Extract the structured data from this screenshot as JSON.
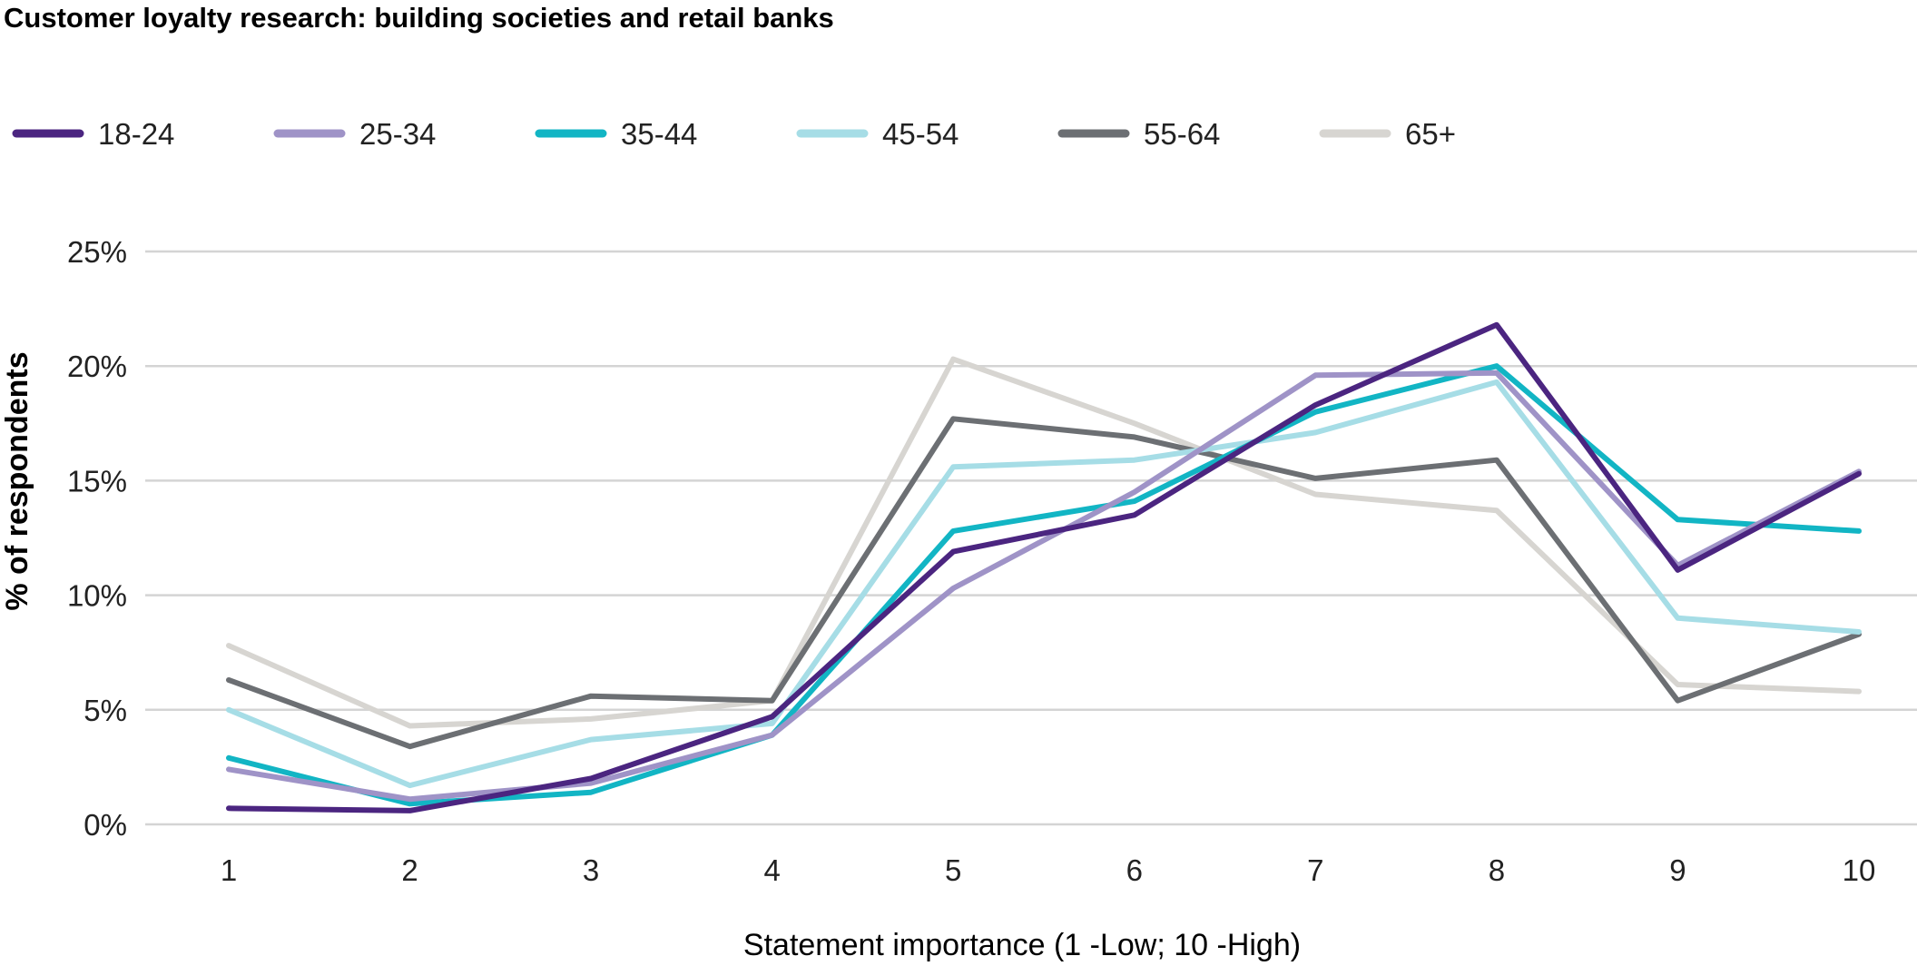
{
  "chart_data": {
    "type": "line",
    "title": "Customer loyalty research: building societies and retail banks",
    "xlabel": "Statement importance (1 -Low; 10 -High)",
    "ylabel": "% of respondents",
    "x": [
      1,
      2,
      3,
      4,
      5,
      6,
      7,
      8,
      9,
      10
    ],
    "yticks": [
      "0%",
      "5%",
      "10%",
      "15%",
      "20%",
      "25%"
    ],
    "ylim": [
      0,
      25
    ],
    "grid": true,
    "legend_position": "top-left",
    "series": [
      {
        "name": "18-24",
        "color": "#4b2580",
        "values": [
          0.7,
          0.6,
          2.0,
          4.7,
          11.9,
          13.5,
          18.3,
          21.8,
          11.1,
          15.3
        ]
      },
      {
        "name": "25-34",
        "color": "#9f93c7",
        "values": [
          2.4,
          1.1,
          1.8,
          3.9,
          10.3,
          14.5,
          19.6,
          19.7,
          11.3,
          15.4
        ]
      },
      {
        "name": "35-44",
        "color": "#12b5c4",
        "values": [
          2.9,
          0.9,
          1.4,
          3.9,
          12.8,
          14.1,
          18.0,
          20.0,
          13.3,
          12.8
        ]
      },
      {
        "name": "45-54",
        "color": "#a6dde6",
        "values": [
          5.0,
          1.7,
          3.7,
          4.4,
          15.6,
          15.9,
          17.1,
          19.3,
          9.0,
          8.4
        ]
      },
      {
        "name": "55-64",
        "color": "#6c6f73",
        "values": [
          6.3,
          3.4,
          5.6,
          5.4,
          17.7,
          16.9,
          15.1,
          15.9,
          5.4,
          8.3
        ]
      },
      {
        "name": "65+",
        "color": "#d7d5d1",
        "values": [
          7.8,
          4.3,
          4.6,
          5.4,
          20.3,
          17.5,
          14.4,
          13.7,
          6.1,
          5.8
        ]
      }
    ]
  }
}
